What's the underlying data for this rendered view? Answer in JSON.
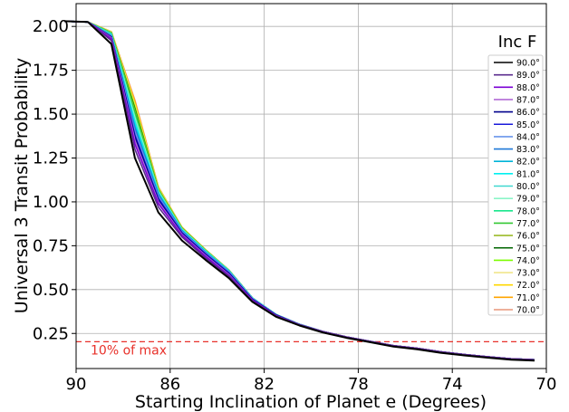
{
  "chart_data": {
    "type": "line",
    "title": "",
    "xlabel": "Starting Inclination of Planet e (Degrees)",
    "ylabel": "Universal 3 Transit Probability",
    "xlim": [
      90,
      70
    ],
    "ylim": [
      0.05,
      2.13
    ],
    "x_ticks": [
      90,
      86,
      82,
      78,
      74,
      70
    ],
    "x_tick_labels": [
      "90",
      "86",
      "82",
      "78",
      "74",
      "70"
    ],
    "y_ticks": [
      0.25,
      0.5,
      0.75,
      1.0,
      1.25,
      1.5,
      1.75,
      2.0
    ],
    "y_tick_labels": [
      "0.25",
      "0.50",
      "0.75",
      "1.00",
      "1.25",
      "1.50",
      "1.75",
      "2.00"
    ],
    "grid": true,
    "legend_title": "Inc F",
    "legend_position": "right",
    "x": [
      90.5,
      89.5,
      88.5,
      87.5,
      86.5,
      85.5,
      84.5,
      83.5,
      82.5,
      81.5,
      80.5,
      79.5,
      78.5,
      77.5,
      76.5,
      75.5,
      74.5,
      73.5,
      72.5,
      71.5,
      70.5
    ],
    "series": [
      {
        "name": "90.0°",
        "color": "#000000",
        "values": [
          2.03,
          2.025,
          1.9,
          1.25,
          0.94,
          0.78,
          0.67,
          0.565,
          0.43,
          0.345,
          0.295,
          0.255,
          0.225,
          0.2,
          0.175,
          0.16,
          0.14,
          0.125,
          0.112,
          0.1,
          0.095
        ]
      },
      {
        "name": "89.0°",
        "color": "#5b2c8e",
        "values": [
          2.03,
          2.025,
          1.92,
          1.3,
          0.97,
          0.8,
          0.68,
          0.575,
          0.435,
          0.35,
          0.3,
          0.26,
          0.23,
          0.205,
          0.18,
          0.165,
          0.145,
          0.13,
          0.117,
          0.105,
          0.1
        ]
      },
      {
        "name": "88.0°",
        "color": "#7b00d4",
        "values": [
          2.03,
          2.025,
          1.93,
          1.33,
          0.99,
          0.81,
          0.69,
          0.58,
          0.44,
          0.352,
          0.3,
          0.26,
          0.23,
          0.205,
          0.18,
          0.165,
          0.145,
          0.13,
          0.117,
          0.105,
          0.1
        ]
      },
      {
        "name": "87.0°",
        "color": "#b36bd6",
        "values": [
          2.03,
          2.025,
          1.935,
          1.35,
          1.0,
          0.815,
          0.695,
          0.585,
          0.44,
          0.352,
          0.3,
          0.26,
          0.23,
          0.205,
          0.18,
          0.165,
          0.145,
          0.13,
          0.117,
          0.105,
          0.1
        ]
      },
      {
        "name": "86.0°",
        "color": "#00008b",
        "values": [
          2.03,
          2.025,
          1.94,
          1.37,
          1.01,
          0.82,
          0.7,
          0.59,
          0.445,
          0.355,
          0.3,
          0.26,
          0.23,
          0.205,
          0.18,
          0.165,
          0.145,
          0.13,
          0.117,
          0.105,
          0.1
        ]
      },
      {
        "name": "85.0°",
        "color": "#1a1adb",
        "values": [
          2.03,
          2.025,
          1.94,
          1.38,
          1.02,
          0.825,
          0.705,
          0.595,
          0.445,
          0.355,
          0.3,
          0.26,
          0.23,
          0.205,
          0.18,
          0.165,
          0.145,
          0.13,
          0.117,
          0.105,
          0.1
        ]
      },
      {
        "name": "84.0°",
        "color": "#6a96ec",
        "values": [
          2.03,
          2.025,
          1.945,
          1.4,
          1.03,
          0.83,
          0.71,
          0.6,
          0.45,
          0.357,
          0.302,
          0.26,
          0.23,
          0.205,
          0.18,
          0.165,
          0.145,
          0.13,
          0.117,
          0.105,
          0.1
        ]
      },
      {
        "name": "83.0°",
        "color": "#1e78d8",
        "values": [
          2.03,
          2.025,
          1.945,
          1.42,
          1.04,
          0.835,
          0.712,
          0.602,
          0.45,
          0.357,
          0.302,
          0.26,
          0.23,
          0.205,
          0.18,
          0.165,
          0.145,
          0.13,
          0.117,
          0.105,
          0.1
        ]
      },
      {
        "name": "82.0°",
        "color": "#00b4d8",
        "values": [
          2.03,
          2.025,
          1.95,
          1.43,
          1.045,
          0.835,
          0.715,
          0.604,
          0.45,
          0.357,
          0.302,
          0.26,
          0.23,
          0.205,
          0.18,
          0.165,
          0.145,
          0.13,
          0.117,
          0.105,
          0.1
        ]
      },
      {
        "name": "81.0°",
        "color": "#00f0f0",
        "values": [
          2.03,
          2.025,
          1.95,
          1.45,
          1.05,
          0.84,
          0.718,
          0.606,
          0.452,
          0.358,
          0.302,
          0.26,
          0.23,
          0.205,
          0.18,
          0.165,
          0.145,
          0.13,
          0.117,
          0.105,
          0.1
        ]
      },
      {
        "name": "80.0°",
        "color": "#40d8d0",
        "values": [
          2.03,
          2.025,
          1.955,
          1.46,
          1.055,
          0.84,
          0.72,
          0.607,
          0.452,
          0.358,
          0.302,
          0.26,
          0.23,
          0.205,
          0.18,
          0.165,
          0.145,
          0.13,
          0.117,
          0.105,
          0.1
        ]
      },
      {
        "name": "79.0°",
        "color": "#8cf5c8",
        "values": [
          2.03,
          2.025,
          1.955,
          1.48,
          1.06,
          0.845,
          0.722,
          0.608,
          0.452,
          0.358,
          0.302,
          0.26,
          0.23,
          0.205,
          0.18,
          0.165,
          0.145,
          0.13,
          0.117,
          0.105,
          0.1
        ]
      },
      {
        "name": "78.0°",
        "color": "#19e68c",
        "values": [
          2.03,
          2.025,
          1.96,
          1.49,
          1.06,
          0.845,
          0.722,
          0.608,
          0.452,
          0.358,
          0.302,
          0.26,
          0.23,
          0.205,
          0.18,
          0.165,
          0.145,
          0.13,
          0.117,
          0.105,
          0.1
        ]
      },
      {
        "name": "77.0°",
        "color": "#32c832",
        "values": [
          2.03,
          2.025,
          1.96,
          1.51,
          1.065,
          0.848,
          0.724,
          0.609,
          0.452,
          0.358,
          0.302,
          0.26,
          0.23,
          0.205,
          0.18,
          0.165,
          0.145,
          0.13,
          0.117,
          0.105,
          0.1
        ]
      },
      {
        "name": "76.0°",
        "color": "#9cbc28",
        "values": [
          2.03,
          2.025,
          1.965,
          1.52,
          1.07,
          0.85,
          0.725,
          0.61,
          0.452,
          0.358,
          0.302,
          0.26,
          0.23,
          0.205,
          0.18,
          0.165,
          0.145,
          0.13,
          0.117,
          0.105,
          0.1
        ]
      },
      {
        "name": "75.0°",
        "color": "#006400",
        "values": [
          2.03,
          2.025,
          1.965,
          1.53,
          1.07,
          0.85,
          0.725,
          0.61,
          0.452,
          0.358,
          0.302,
          0.26,
          0.23,
          0.205,
          0.18,
          0.165,
          0.145,
          0.13,
          0.117,
          0.105,
          0.1
        ]
      },
      {
        "name": "74.0°",
        "color": "#7cfc00",
        "values": [
          2.03,
          2.025,
          1.965,
          1.54,
          1.075,
          0.852,
          0.726,
          0.61,
          0.452,
          0.358,
          0.302,
          0.26,
          0.23,
          0.205,
          0.18,
          0.165,
          0.145,
          0.13,
          0.117,
          0.105,
          0.1
        ]
      },
      {
        "name": "73.0°",
        "color": "#f0e68c",
        "values": [
          2.03,
          2.025,
          1.97,
          1.55,
          1.08,
          0.853,
          0.727,
          0.61,
          0.452,
          0.358,
          0.302,
          0.26,
          0.23,
          0.205,
          0.18,
          0.165,
          0.145,
          0.13,
          0.117,
          0.105,
          0.1
        ]
      },
      {
        "name": "72.0°",
        "color": "#ffd700",
        "values": [
          2.03,
          2.025,
          1.97,
          1.56,
          1.08,
          0.853,
          0.727,
          0.61,
          0.452,
          0.358,
          0.302,
          0.26,
          0.23,
          0.205,
          0.18,
          0.165,
          0.145,
          0.13,
          0.117,
          0.105,
          0.1
        ]
      },
      {
        "name": "71.0°",
        "color": "#ffa500",
        "values": [
          2.03,
          2.025,
          1.97,
          1.57,
          1.085,
          0.855,
          0.728,
          0.61,
          0.452,
          0.358,
          0.302,
          0.26,
          0.23,
          0.205,
          0.18,
          0.165,
          0.145,
          0.13,
          0.117,
          0.105,
          0.1
        ]
      },
      {
        "name": "70.0°",
        "color": "#e9967a",
        "values": [
          2.03,
          2.025,
          1.97,
          1.58,
          1.085,
          0.855,
          0.728,
          0.61,
          0.452,
          0.358,
          0.302,
          0.26,
          0.23,
          0.205,
          0.18,
          0.165,
          0.145,
          0.13,
          0.117,
          0.105,
          0.1
        ]
      }
    ],
    "threshold": {
      "value": 0.203,
      "label": "10% of max",
      "color": "#e8312a",
      "style": "dashed"
    }
  }
}
